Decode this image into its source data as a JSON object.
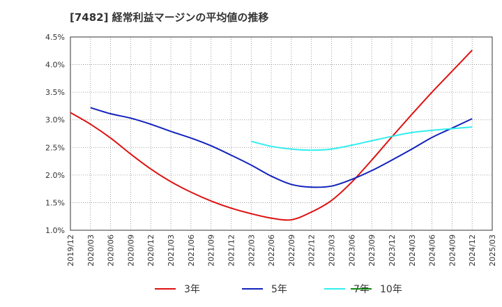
{
  "chart_data": {
    "type": "line",
    "title": "[7482]  経常利益マージンの平均値の推移",
    "xlabel": "",
    "ylabel": "",
    "ylim": [
      1.0,
      4.5
    ],
    "yticks": [
      "1.0%",
      "1.5%",
      "2.0%",
      "2.5%",
      "3.0%",
      "3.5%",
      "4.0%",
      "4.5%"
    ],
    "categories": [
      "2019/12",
      "2020/03",
      "2020/06",
      "2020/09",
      "2020/12",
      "2021/03",
      "2021/06",
      "2021/09",
      "2021/12",
      "2022/03",
      "2022/06",
      "2022/09",
      "2022/12",
      "2023/03",
      "2023/06",
      "2023/09",
      "2023/12",
      "2024/03",
      "2024/06",
      "2024/09",
      "2024/12",
      "2025/03"
    ],
    "grid": true,
    "legend_position": "bottom",
    "series": [
      {
        "name": "3年",
        "color": "#dd1111",
        "values": [
          3.13,
          2.92,
          2.67,
          2.38,
          2.11,
          1.88,
          1.69,
          1.53,
          1.4,
          1.3,
          1.22,
          1.19,
          1.33,
          1.54,
          1.87,
          2.27,
          2.69,
          3.1,
          3.5,
          3.88,
          4.26,
          null
        ]
      },
      {
        "name": "5年",
        "color": "#1122bb",
        "values": [
          null,
          3.22,
          3.11,
          3.03,
          2.92,
          2.79,
          2.67,
          2.53,
          2.36,
          2.18,
          1.98,
          1.83,
          1.78,
          1.8,
          1.92,
          2.08,
          2.27,
          2.47,
          2.68,
          2.85,
          3.02,
          null
        ]
      },
      {
        "name": "7年",
        "color": "#33eeee",
        "values": [
          null,
          null,
          null,
          null,
          null,
          null,
          null,
          null,
          null,
          2.61,
          2.52,
          2.47,
          2.45,
          2.47,
          2.54,
          2.62,
          2.7,
          2.77,
          2.81,
          2.84,
          2.87,
          null
        ]
      },
      {
        "name": "10年",
        "color": "#118811",
        "values": [
          null,
          null,
          null,
          null,
          null,
          null,
          null,
          null,
          null,
          null,
          null,
          null,
          null,
          null,
          null,
          null,
          null,
          null,
          null,
          null,
          null,
          null
        ]
      }
    ]
  }
}
